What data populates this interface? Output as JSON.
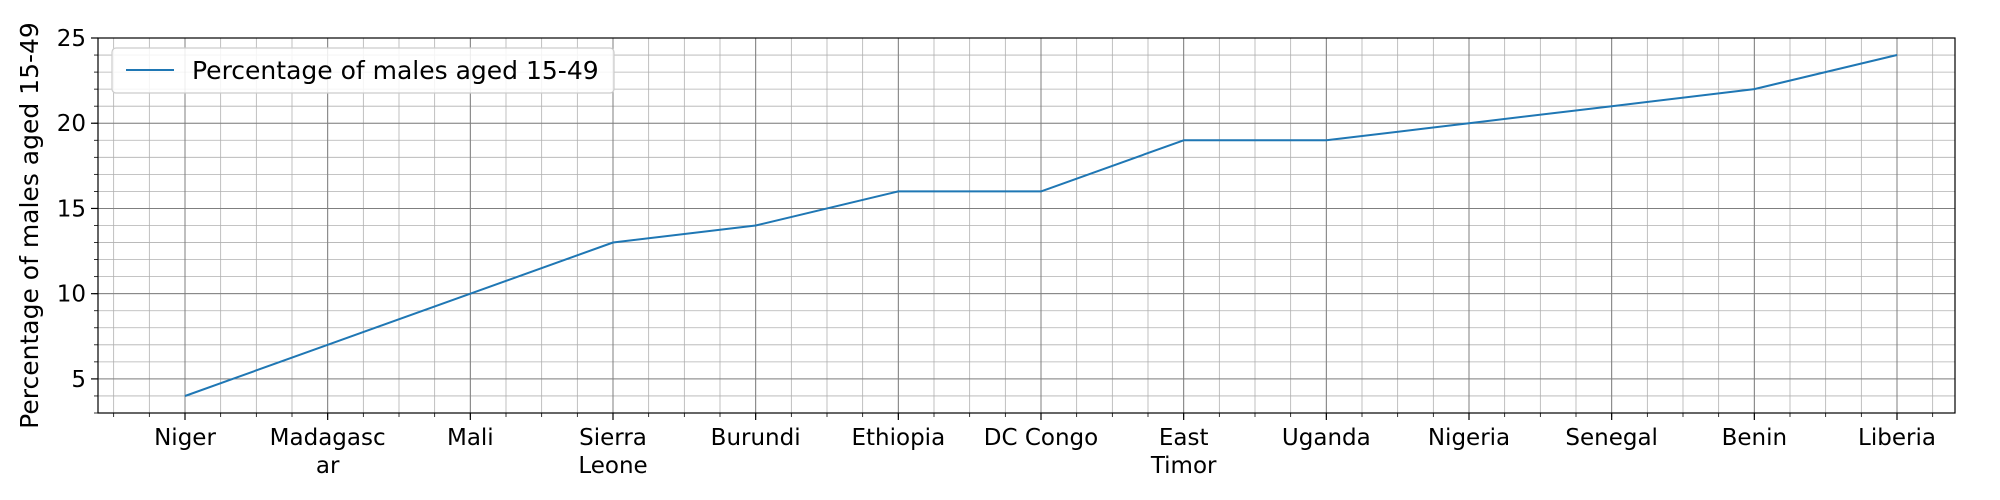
{
  "chart_data": {
    "type": "line",
    "title": "",
    "xlabel": "",
    "ylabel": "Percentage of males aged 15-49",
    "categories": [
      [
        "Niger"
      ],
      [
        "Madagasc",
        "ar"
      ],
      [
        "Mali"
      ],
      [
        "Sierra",
        "Leone"
      ],
      [
        "Burundi"
      ],
      [
        "Ethiopia"
      ],
      [
        "DC Congo"
      ],
      [
        "East",
        "Timor"
      ],
      [
        "Uganda"
      ],
      [
        "Nigeria"
      ],
      [
        "Senegal"
      ],
      [
        "Benin"
      ],
      [
        "Liberia"
      ]
    ],
    "series": [
      {
        "name": "Percentage of males aged 15-49",
        "color": "#1f77b4",
        "values": [
          4,
          7,
          10,
          13,
          14,
          16,
          16,
          19,
          19,
          20,
          21,
          22,
          24
        ]
      }
    ],
    "ylim": [
      3,
      25
    ],
    "yticks": [
      "5",
      "10",
      "15",
      "20",
      "25"
    ],
    "ytick_values": [
      5,
      10,
      15,
      20,
      25
    ],
    "grid": true,
    "minor_grid": true,
    "legend_position": "top-left"
  }
}
